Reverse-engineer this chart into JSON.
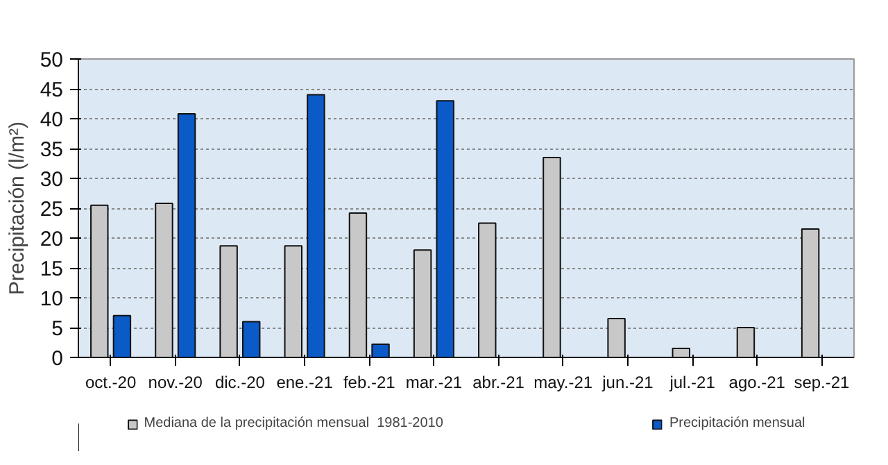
{
  "chart_data": {
    "type": "bar",
    "ylabel": "Precipitación (l/m²)",
    "categories": [
      "oct.-20",
      "nov.-20",
      "dic.-20",
      "ene.-21",
      "feb.-21",
      "mar.-21",
      "abr.-21",
      "may.-21",
      "jun.-21",
      "jul.-21",
      "ago.-21",
      "sep.-21"
    ],
    "series": [
      {
        "name": "Mediana de la precipitación mensual  1981-2010",
        "color": "#c8c8c8",
        "values": [
          25.5,
          25.8,
          18.7,
          18.7,
          24.2,
          18,
          22.5,
          33.5,
          6.5,
          1.5,
          5,
          21.5
        ]
      },
      {
        "name": "Precipitación mensual",
        "color": "#0a5ac8",
        "values": [
          7,
          40.8,
          6,
          44,
          2.2,
          43,
          null,
          null,
          null,
          null,
          null,
          null
        ]
      }
    ],
    "ylim": [
      0,
      50
    ],
    "yticks": [
      0,
      5,
      10,
      15,
      20,
      25,
      30,
      35,
      40,
      45,
      50
    ],
    "grid": "y",
    "legend": "bottom"
  }
}
